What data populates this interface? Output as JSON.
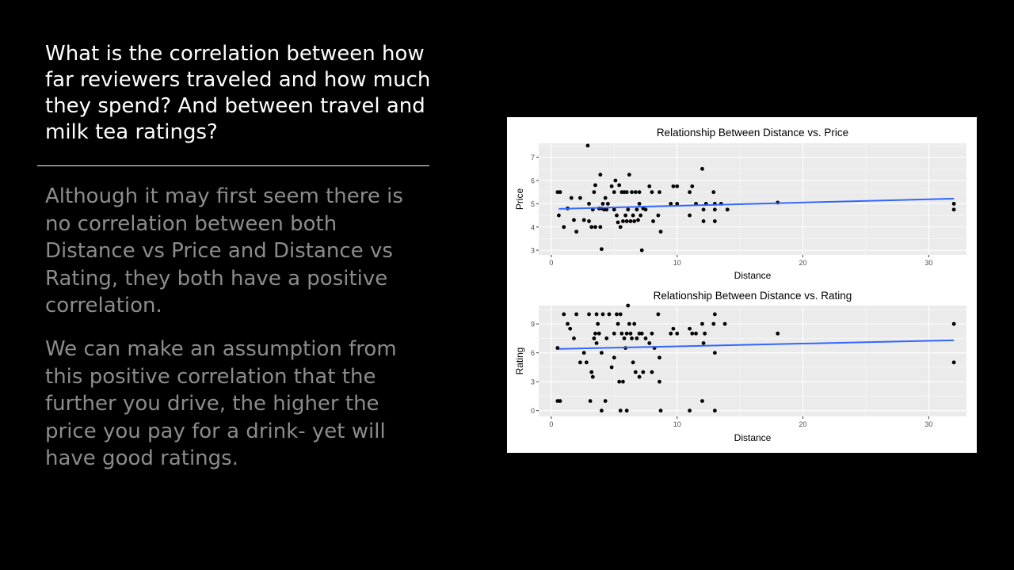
{
  "slide": {
    "question": "What is the correlation between how far reviewers traveled and how much they spend? And between travel and milk tea ratings?",
    "paragraphs": [
      "Although it may first seem there is no correlation between both Distance vs Price and Distance vs Rating, they both have a positive correlation.",
      "We can make an assumption from this positive correlation that the further you drive, the higher the price you pay for a drink- yet will have good ratings."
    ]
  },
  "colors": {
    "background": "#000000",
    "question_text": "#ffffff",
    "body_text": "#8c8c8c",
    "panel_bg": "#ebebeb",
    "grid": "#ffffff",
    "point": "#000000",
    "trend_line": "#3366ff"
  },
  "chart_data": [
    {
      "type": "scatter",
      "title": "Relationship Between Distance vs. Price",
      "xlabel": "Distance",
      "ylabel": "Price",
      "xlim": [
        -1,
        33
      ],
      "ylim": [
        2.8,
        7.6
      ],
      "xticks": [
        0,
        10,
        20,
        30
      ],
      "yticks": [
        3,
        4,
        5,
        6,
        7
      ],
      "grid": true,
      "legend": "none",
      "trend_line": {
        "x": [
          0.6,
          32
        ],
        "y": [
          4.78,
          5.22
        ]
      },
      "points": [
        [
          0.5,
          5.5
        ],
        [
          0.6,
          4.5
        ],
        [
          0.7,
          5.5
        ],
        [
          1.0,
          4.0
        ],
        [
          1.3,
          4.8
        ],
        [
          1.6,
          5.25
        ],
        [
          1.8,
          4.3
        ],
        [
          2.0,
          3.8
        ],
        [
          2.3,
          5.25
        ],
        [
          2.6,
          4.3
        ],
        [
          2.9,
          7.5
        ],
        [
          3.0,
          4.25
        ],
        [
          3.0,
          5.0
        ],
        [
          3.2,
          4.0
        ],
        [
          3.3,
          4.75
        ],
        [
          3.4,
          5.5
        ],
        [
          3.5,
          4.0
        ],
        [
          3.5,
          5.8
        ],
        [
          3.8,
          4.8
        ],
        [
          3.9,
          6.25
        ],
        [
          3.9,
          4.0
        ],
        [
          4.0,
          3.05
        ],
        [
          4.0,
          4.8
        ],
        [
          4.1,
          5.0
        ],
        [
          4.2,
          4.75
        ],
        [
          4.3,
          5.25
        ],
        [
          4.4,
          4.75
        ],
        [
          4.5,
          5.0
        ],
        [
          4.8,
          5.75
        ],
        [
          5.0,
          4.75
        ],
        [
          5.0,
          5.5
        ],
        [
          5.1,
          6.0
        ],
        [
          5.2,
          4.5
        ],
        [
          5.3,
          4.2
        ],
        [
          5.4,
          5.8
        ],
        [
          5.5,
          4.0
        ],
        [
          5.6,
          5.5
        ],
        [
          5.7,
          4.25
        ],
        [
          5.8,
          5.5
        ],
        [
          5.9,
          4.5
        ],
        [
          6.0,
          4.25
        ],
        [
          6.0,
          5.5
        ],
        [
          6.1,
          4.75
        ],
        [
          6.2,
          6.25
        ],
        [
          6.3,
          4.25
        ],
        [
          6.4,
          5.5
        ],
        [
          6.5,
          4.5
        ],
        [
          6.6,
          4.25
        ],
        [
          6.7,
          5.5
        ],
        [
          6.8,
          4.75
        ],
        [
          6.9,
          4.3
        ],
        [
          7.0,
          5.0
        ],
        [
          7.0,
          5.5
        ],
        [
          7.1,
          4.5
        ],
        [
          7.2,
          3.0
        ],
        [
          7.3,
          4.8
        ],
        [
          7.5,
          4.75
        ],
        [
          7.8,
          5.75
        ],
        [
          8.0,
          5.5
        ],
        [
          8.1,
          4.25
        ],
        [
          8.5,
          4.5
        ],
        [
          8.6,
          5.5
        ],
        [
          8.7,
          3.8
        ],
        [
          9.5,
          5.0
        ],
        [
          9.7,
          5.75
        ],
        [
          10.0,
          5.75
        ],
        [
          10.0,
          5.0
        ],
        [
          11.0,
          4.5
        ],
        [
          11.0,
          5.5
        ],
        [
          11.2,
          5.75
        ],
        [
          11.5,
          5.0
        ],
        [
          12.0,
          6.5
        ],
        [
          12.1,
          4.75
        ],
        [
          12.1,
          4.25
        ],
        [
          12.3,
          5.0
        ],
        [
          12.9,
          5.5
        ],
        [
          13.0,
          5.0
        ],
        [
          13.0,
          4.75
        ],
        [
          13.0,
          4.25
        ],
        [
          13.5,
          5.0
        ],
        [
          14.0,
          4.75
        ],
        [
          18.0,
          5.05
        ],
        [
          32.0,
          4.75
        ],
        [
          32.0,
          5.0
        ]
      ]
    },
    {
      "type": "scatter",
      "title": "Relationship Between Distance vs. Rating",
      "xlabel": "Distance",
      "ylabel": "Rating",
      "xlim": [
        -1,
        33
      ],
      "ylim": [
        -0.6,
        10.9
      ],
      "xticks": [
        0,
        10,
        20,
        30
      ],
      "yticks": [
        0,
        3,
        6,
        9
      ],
      "grid": true,
      "legend": "none",
      "trend_line": {
        "x": [
          0.6,
          32
        ],
        "y": [
          6.4,
          7.3
        ]
      },
      "points": [
        [
          0.5,
          1.0
        ],
        [
          0.5,
          6.5
        ],
        [
          0.7,
          1.0
        ],
        [
          1.0,
          10.0
        ],
        [
          1.3,
          9.0
        ],
        [
          1.5,
          8.5
        ],
        [
          1.8,
          7.5
        ],
        [
          2.0,
          10.0
        ],
        [
          2.3,
          5.0
        ],
        [
          2.6,
          6.0
        ],
        [
          2.8,
          5.0
        ],
        [
          3.0,
          10.0
        ],
        [
          3.1,
          1.0
        ],
        [
          3.2,
          4.0
        ],
        [
          3.3,
          3.5
        ],
        [
          3.4,
          7.5
        ],
        [
          3.5,
          8.0
        ],
        [
          3.6,
          10.0
        ],
        [
          3.6,
          7.0
        ],
        [
          3.7,
          9.0
        ],
        [
          3.8,
          8.0
        ],
        [
          4.0,
          0.0
        ],
        [
          4.0,
          6.0
        ],
        [
          4.1,
          10.0
        ],
        [
          4.3,
          1.0
        ],
        [
          4.4,
          7.5
        ],
        [
          4.6,
          10.0
        ],
        [
          4.8,
          4.5
        ],
        [
          5.0,
          8.0
        ],
        [
          5.0,
          5.5
        ],
        [
          5.2,
          10.0
        ],
        [
          5.3,
          9.0
        ],
        [
          5.4,
          3.0
        ],
        [
          5.5,
          0.0
        ],
        [
          5.5,
          10.0
        ],
        [
          5.6,
          8.0
        ],
        [
          5.7,
          3.0
        ],
        [
          5.8,
          7.5
        ],
        [
          5.9,
          6.5
        ],
        [
          6.0,
          0.0
        ],
        [
          6.0,
          8.0
        ],
        [
          6.1,
          10.9
        ],
        [
          6.2,
          9.0
        ],
        [
          6.3,
          8.0
        ],
        [
          6.4,
          7.5
        ],
        [
          6.5,
          5.0
        ],
        [
          6.6,
          9.0
        ],
        [
          6.7,
          4.0
        ],
        [
          6.8,
          7.5
        ],
        [
          7.0,
          8.0
        ],
        [
          7.0,
          3.5
        ],
        [
          7.2,
          8.0
        ],
        [
          7.3,
          4.0
        ],
        [
          7.5,
          7.5
        ],
        [
          7.8,
          7.0
        ],
        [
          8.0,
          4.0
        ],
        [
          8.0,
          8.0
        ],
        [
          8.2,
          6.5
        ],
        [
          8.5,
          10.0
        ],
        [
          8.6,
          3.0
        ],
        [
          8.6,
          5.5
        ],
        [
          8.7,
          0.0
        ],
        [
          9.5,
          8.0
        ],
        [
          9.7,
          8.5
        ],
        [
          10.0,
          8.0
        ],
        [
          11.0,
          0.0
        ],
        [
          11.0,
          8.5
        ],
        [
          11.2,
          8.0
        ],
        [
          11.5,
          8.0
        ],
        [
          12.0,
          9.0
        ],
        [
          12.1,
          7.0
        ],
        [
          12.0,
          1.0
        ],
        [
          12.2,
          8.0
        ],
        [
          12.9,
          9.0
        ],
        [
          13.0,
          10.0
        ],
        [
          13.0,
          6.0
        ],
        [
          13.0,
          0.0
        ],
        [
          13.8,
          9.0
        ],
        [
          18.0,
          8.0
        ],
        [
          32.0,
          9.0
        ],
        [
          32.0,
          5.0
        ]
      ]
    }
  ]
}
